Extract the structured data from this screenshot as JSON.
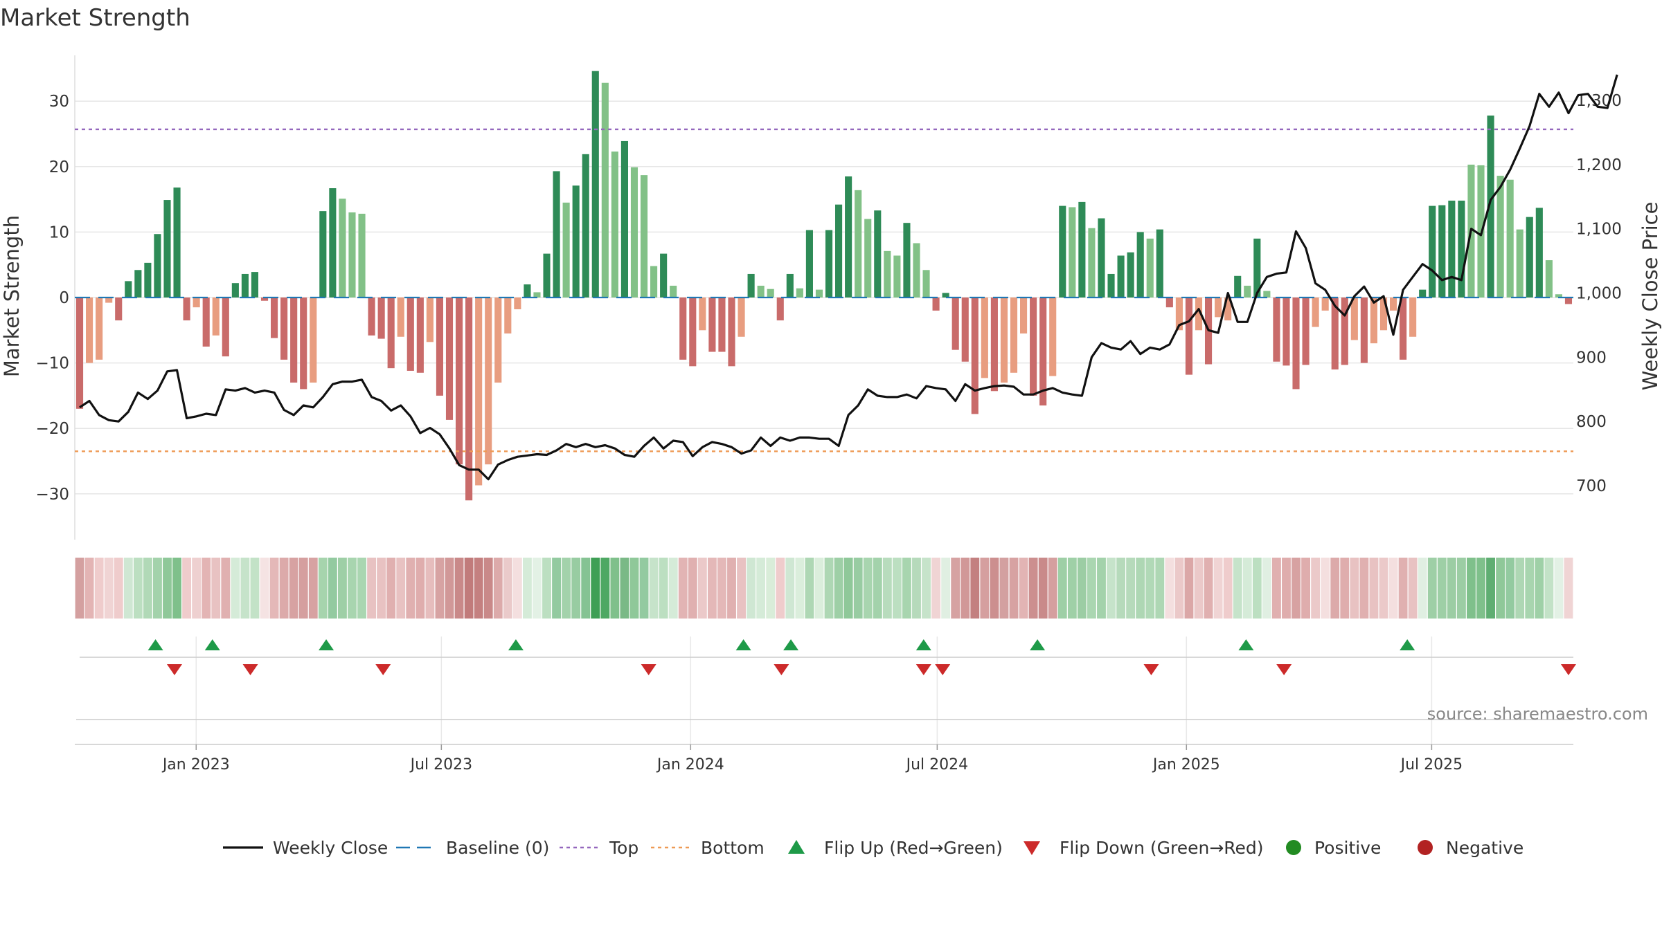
{
  "chart_data": {
    "type": "bar",
    "title": "Market Strength",
    "ylabel": "Market Strength",
    "y2label": "Weekly Close Price",
    "ylim": [
      -37,
      37
    ],
    "y2lim": [
      616,
      1370
    ],
    "yticks": [
      -30,
      -20,
      -10,
      0,
      10,
      20,
      30
    ],
    "y2ticks": [
      700,
      800,
      900,
      1000,
      1100,
      1200,
      1300
    ],
    "y2tick_labels": [
      "700",
      "800",
      "900",
      "1,000",
      "1,100",
      "1,200",
      "1,300"
    ],
    "top_level": 25.7,
    "bottom_level": -23.5,
    "baseline": 0,
    "x_start": "2022-10-07",
    "x_end": "2025-10-10",
    "xtick_dates": [
      "2023-01-01",
      "2023-07-01",
      "2024-01-01",
      "2024-07-01",
      "2025-01-01",
      "2025-07-01"
    ],
    "xtick_labels": [
      "Jan 2023",
      "Jul 2023",
      "Jan 2024",
      "Jul 2024",
      "Jan 2025",
      "Jul 2025"
    ],
    "strength": [
      -17.0,
      -10.0,
      -9.5,
      -0.8,
      -3.5,
      2.5,
      4.2,
      5.3,
      9.7,
      14.9,
      16.8,
      -3.5,
      -1.5,
      -7.5,
      -5.8,
      -9.0,
      2.2,
      3.6,
      3.9,
      -0.5,
      -6.2,
      -9.5,
      -13.0,
      -14.0,
      -13.0,
      13.2,
      16.7,
      15.1,
      13.0,
      12.8,
      -5.8,
      -6.3,
      -10.8,
      -6.0,
      -11.2,
      -11.5,
      -6.8,
      -15.0,
      -18.7,
      -25.5,
      -31.0,
      -28.7,
      -25.5,
      -13.0,
      -5.5,
      -1.8,
      2.0,
      0.8,
      6.7,
      19.3,
      14.5,
      17.1,
      21.9,
      34.6,
      32.8,
      22.3,
      23.9,
      19.9,
      18.7,
      4.8,
      6.7,
      1.8,
      -9.5,
      -10.5,
      -5.0,
      -8.3,
      -8.3,
      -10.5,
      -6.0,
      3.6,
      1.8,
      1.3,
      -3.5,
      3.6,
      1.4,
      10.3,
      1.2,
      10.3,
      14.2,
      18.5,
      16.4,
      12.0,
      13.3,
      7.1,
      6.4,
      11.4,
      8.3,
      4.2,
      -2.0,
      0.7,
      -8.0,
      -9.8,
      -17.8,
      -12.3,
      -14.3,
      -13.0,
      -11.5,
      -5.5,
      -15.0,
      -16.5,
      -12.0,
      14.0,
      13.8,
      14.6,
      10.6,
      12.1,
      3.6,
      6.4,
      6.9,
      10.0,
      9.0,
      10.4,
      -1.5,
      -5.0,
      -11.8,
      -5.0,
      -10.2,
      -3.0,
      -3.5,
      3.3,
      1.8,
      9.0,
      1.0,
      -9.8,
      -10.4,
      -14.0,
      -10.3,
      -4.5,
      -2.0,
      -11.0,
      -10.3,
      -6.5,
      -10.0,
      -7.0,
      -5.0,
      -2.0,
      -9.5,
      -6.0,
      1.2,
      14.0,
      14.1,
      14.8,
      14.8,
      20.3,
      20.2,
      27.8,
      18.6,
      18.0,
      10.4,
      12.3,
      13.7,
      5.7,
      0.5,
      -1.0
    ],
    "colors": [
      "#c96b6a",
      "#e89d80",
      "#e89d80",
      "#e89d80",
      "#c96b6a",
      "#2e8b57",
      "#2e8b57",
      "#2e8b57",
      "#2e8b57",
      "#2e8b57",
      "#2e8b57",
      "#c96b6a",
      "#e89d80",
      "#c96b6a",
      "#e89d80",
      "#c96b6a",
      "#2e8b57",
      "#2e8b57",
      "#2e8b57",
      "#c96b6a",
      "#c96b6a",
      "#c96b6a",
      "#c96b6a",
      "#c96b6a",
      "#e89d80",
      "#2e8b57",
      "#2e8b57",
      "#82c187",
      "#82c187",
      "#82c187",
      "#c96b6a",
      "#c96b6a",
      "#c96b6a",
      "#e89d80",
      "#c96b6a",
      "#c96b6a",
      "#e89d80",
      "#c96b6a",
      "#c96b6a",
      "#c96b6a",
      "#c96b6a",
      "#e89d80",
      "#e89d80",
      "#e89d80",
      "#e89d80",
      "#e89d80",
      "#2e8b57",
      "#82c187",
      "#2e8b57",
      "#2e8b57",
      "#82c187",
      "#2e8b57",
      "#2e8b57",
      "#2e8b57",
      "#82c187",
      "#82c187",
      "#2e8b57",
      "#82c187",
      "#82c187",
      "#82c187",
      "#2e8b57",
      "#82c187",
      "#c96b6a",
      "#c96b6a",
      "#e89d80",
      "#c96b6a",
      "#c96b6a",
      "#c96b6a",
      "#e89d80",
      "#2e8b57",
      "#82c187",
      "#82c187",
      "#c96b6a",
      "#2e8b57",
      "#82c187",
      "#2e8b57",
      "#82c187",
      "#2e8b57",
      "#2e8b57",
      "#2e8b57",
      "#82c187",
      "#82c187",
      "#2e8b57",
      "#82c187",
      "#82c187",
      "#2e8b57",
      "#82c187",
      "#82c187",
      "#c96b6a",
      "#2e8b57",
      "#c96b6a",
      "#c96b6a",
      "#c96b6a",
      "#e89d80",
      "#c96b6a",
      "#e89d80",
      "#e89d80",
      "#e89d80",
      "#c96b6a",
      "#c96b6a",
      "#e89d80",
      "#2e8b57",
      "#82c187",
      "#2e8b57",
      "#82c187",
      "#2e8b57",
      "#2e8b57",
      "#2e8b57",
      "#2e8b57",
      "#2e8b57",
      "#82c187",
      "#2e8b57",
      "#c96b6a",
      "#e89d80",
      "#c96b6a",
      "#e89d80",
      "#c96b6a",
      "#e89d80",
      "#e89d80",
      "#2e8b57",
      "#82c187",
      "#2e8b57",
      "#82c187",
      "#c96b6a",
      "#c96b6a",
      "#c96b6a",
      "#c96b6a",
      "#e89d80",
      "#e89d80",
      "#c96b6a",
      "#c96b6a",
      "#e89d80",
      "#c96b6a",
      "#e89d80",
      "#e89d80",
      "#e89d80",
      "#c96b6a",
      "#e89d80",
      "#2e8b57",
      "#2e8b57",
      "#2e8b57",
      "#2e8b57",
      "#2e8b57",
      "#82c187",
      "#82c187",
      "#2e8b57",
      "#82c187",
      "#82c187",
      "#82c187",
      "#2e8b57",
      "#2e8b57",
      "#82c187",
      "#82c187",
      "#c96b6a"
    ],
    "close": [
      822,
      832,
      810,
      802,
      800,
      815,
      845,
      835,
      848,
      878,
      880,
      805,
      808,
      812,
      810,
      850,
      848,
      852,
      845,
      848,
      845,
      818,
      810,
      825,
      822,
      838,
      858,
      862,
      862,
      865,
      838,
      832,
      817,
      825,
      808,
      782,
      790,
      780,
      758,
      732,
      725,
      725,
      710,
      733,
      740,
      745,
      747,
      749,
      748,
      755,
      765,
      760,
      765,
      760,
      763,
      758,
      748,
      745,
      762,
      775,
      758,
      770,
      768,
      746,
      760,
      768,
      765,
      760,
      750,
      755,
      775,
      762,
      775,
      770,
      775,
      775,
      773,
      773,
      762,
      810,
      825,
      850,
      840,
      838,
      838,
      842,
      836,
      855,
      852,
      850,
      832,
      858,
      848,
      852,
      855,
      856,
      854,
      842,
      842,
      848,
      852,
      845,
      842,
      840,
      900,
      922,
      915,
      912,
      925,
      905,
      915,
      912,
      920,
      950,
      956,
      975,
      942,
      938,
      1000,
      955,
      955,
      1000,
      1025,
      1030,
      1032,
      1096,
      1070,
      1015,
      1005,
      980,
      965,
      995,
      1010,
      985,
      995,
      935,
      1005,
      1025,
      1045,
      1035,
      1020,
      1025,
      1020,
      1100,
      1090,
      1145,
      1165,
      1192,
      1225,
      1260,
      1310,
      1290,
      1312,
      1280,
      1308,
      1310,
      1290,
      1288,
      1340
    ],
    "heat_colors": [
      "#d4a0a0",
      "#e3b4b4",
      "#efcccc",
      "#f0d4d4",
      "#efcccc",
      "#cfe7d3",
      "#bcdfc1",
      "#b1d9b7",
      "#a3d2ab",
      "#8fc899",
      "#7fc08b",
      "#efcccc",
      "#eed0d0",
      "#e3b4b4",
      "#e8c2c2",
      "#e0b0b0",
      "#d5ebd8",
      "#c6e3ca",
      "#c3e2c7",
      "#f5e3e3",
      "#e4b8b8",
      "#dcaaaa",
      "#d7a2a2",
      "#d59f9f",
      "#d7a2a2",
      "#a6d4ad",
      "#93caa0",
      "#9ecfa6",
      "#a8d5af",
      "#aad6b1",
      "#e8c2c2",
      "#e8c2c2",
      "#e0b0b0",
      "#e8c2c2",
      "#e0b0b0",
      "#dfadad",
      "#e6bdbd",
      "#d7a3a3",
      "#d19898",
      "#c98989",
      "#c17b7b",
      "#c48080",
      "#c98989",
      "#dcaaaa",
      "#eacaca",
      "#f4dfdf",
      "#d5ebd8",
      "#e3f1e5",
      "#bcdfc1",
      "#93caa0",
      "#a3d2ab",
      "#98cca2",
      "#85c393",
      "#3e9f55",
      "#4ea863",
      "#7fc08b",
      "#7ab986",
      "#8fc899",
      "#93caa0",
      "#c6e3ca",
      "#bcdfc1",
      "#d5ebd8",
      "#e2b4b4",
      "#e0b0b0",
      "#ebc9c9",
      "#e4b8b8",
      "#e4b8b8",
      "#e0b0b0",
      "#e8c2c2",
      "#cfe7d3",
      "#d5ebd8",
      "#d9edd9",
      "#efcccc",
      "#cfe7d3",
      "#dbeedc",
      "#aed7b4",
      "#dbeedc",
      "#aed7b4",
      "#9ecfa6",
      "#8fc899",
      "#98cca2",
      "#a8d5af",
      "#a3d2ab",
      "#b8dcbd",
      "#bcdfc1",
      "#a8d5af",
      "#b6dabb",
      "#c6e3ca",
      "#f0d4d4",
      "#e0efe2",
      "#d6a2a2",
      "#d19898",
      "#c38080",
      "#d59f9f",
      "#cc8f8f",
      "#d3a0a0",
      "#d7a2a2",
      "#e2b4b4",
      "#cc8f8f",
      "#c98a8a",
      "#d59f9f",
      "#9ecfa6",
      "#9fd0a7",
      "#9ccda4",
      "#aad6b1",
      "#a3d2ab",
      "#c6e3ca",
      "#b6dabb",
      "#b6dabb",
      "#aed7b4",
      "#b1d9b7",
      "#aed7b4",
      "#f4dfdf",
      "#ebc9c9",
      "#dba7a7",
      "#ebc9c9",
      "#e0b0b0",
      "#f0d4d4",
      "#efcccc",
      "#c6e3ca",
      "#d5ebd8",
      "#bcdfc1",
      "#e0efe2",
      "#e0b0b0",
      "#dfadad",
      "#d7a2a2",
      "#dfadad",
      "#ebc9c9",
      "#f4dfdf",
      "#dcaaaa",
      "#dfadad",
      "#e8c2c2",
      "#e0b0b0",
      "#e8c2c2",
      "#ebc9c9",
      "#f4dfdf",
      "#e0b0b0",
      "#e8c2c2",
      "#e0efe2",
      "#9ecfa6",
      "#9ecfa6",
      "#9ccda4",
      "#9ccda4",
      "#7fc08b",
      "#7fc08b",
      "#5fae72",
      "#8fc899",
      "#93caa0",
      "#aed7b4",
      "#a8d5af",
      "#9fd0a7",
      "#c3e2c7",
      "#e3f1e5",
      "#f0d4d4"
    ],
    "flip_up_dates": [
      "2022-12-02",
      "2023-01-13",
      "2023-04-07",
      "2023-08-25",
      "2024-02-09",
      "2024-03-15",
      "2024-06-21",
      "2024-09-13",
      "2025-02-14",
      "2025-06-13"
    ],
    "flip_down_dates": [
      "2022-12-16",
      "2023-02-10",
      "2023-05-19",
      "2023-12-01",
      "2024-03-08",
      "2024-06-21",
      "2024-07-05",
      "2024-12-06",
      "2025-03-14",
      "2025-10-10"
    ],
    "legend": [
      {
        "label": "Weekly Close",
        "symbol": "line",
        "color": "#111111"
      },
      {
        "label": "Baseline (0)",
        "symbol": "dash",
        "color": "#1f77b4"
      },
      {
        "label": "Top",
        "symbol": "dot",
        "color": "#9467bd"
      },
      {
        "label": "Bottom",
        "symbol": "dot",
        "color": "#ee9a55"
      },
      {
        "label": "Flip Up (Red→Green)",
        "symbol": "tri-up",
        "color": "#1e9a48"
      },
      {
        "label": "Flip Down (Green→Red)",
        "symbol": "tri-down",
        "color": "#cc2a2a"
      },
      {
        "label": "Positive",
        "symbol": "circle",
        "color": "#228b22"
      },
      {
        "label": "Negative",
        "symbol": "circle",
        "color": "#b22222"
      }
    ],
    "legend_position": "bottom-center",
    "grid": true,
    "source": "source: sharemaestro.com"
  }
}
